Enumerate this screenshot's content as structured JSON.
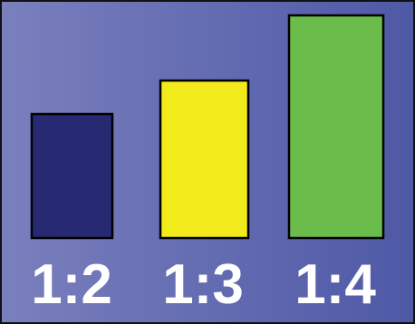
{
  "colors": {
    "background_left": "#7a7fbd",
    "background_right": "#4e59a6",
    "bar_outline": "#000000",
    "label_text": "#ffffff"
  },
  "bars": [
    {
      "label": "1:2",
      "color": "#272a72"
    },
    {
      "label": "1:3",
      "color": "#f2ea1a"
    },
    {
      "label": "1:4",
      "color": "#6abd4a"
    }
  ]
}
